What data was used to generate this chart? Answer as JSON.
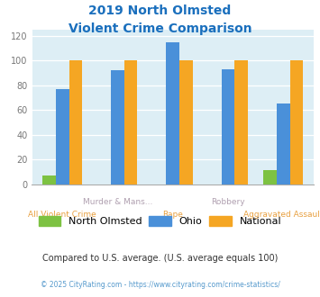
{
  "title_line1": "2019 North Olmsted",
  "title_line2": "Violent Crime Comparison",
  "categories": [
    "All Violent Crime",
    "Murder & Mans...",
    "Rape",
    "Robbery",
    "Aggravated Assault"
  ],
  "north_olmsted": [
    7,
    0,
    0,
    0,
    11
  ],
  "ohio": [
    77,
    92,
    115,
    93,
    65
  ],
  "national": [
    100,
    100,
    100,
    100,
    100
  ],
  "colors": {
    "north_olmsted": "#7dc242",
    "ohio": "#4a90d9",
    "national": "#f5a623"
  },
  "ylim": [
    0,
    125
  ],
  "yticks": [
    0,
    20,
    40,
    60,
    80,
    100,
    120
  ],
  "bg_color": "#ddeef5",
  "title_color": "#1a6fbd",
  "legend_labels": [
    "North Olmsted",
    "Ohio",
    "National"
  ],
  "footnote1": "Compared to U.S. average. (U.S. average equals 100)",
  "footnote2": "© 2025 CityRating.com - https://www.cityrating.com/crime-statistics/",
  "top_label_color": "#b0a0b0",
  "bottom_label_color": "#e8a040",
  "footnote1_color": "#333333",
  "footnote2_color": "#5599cc"
}
